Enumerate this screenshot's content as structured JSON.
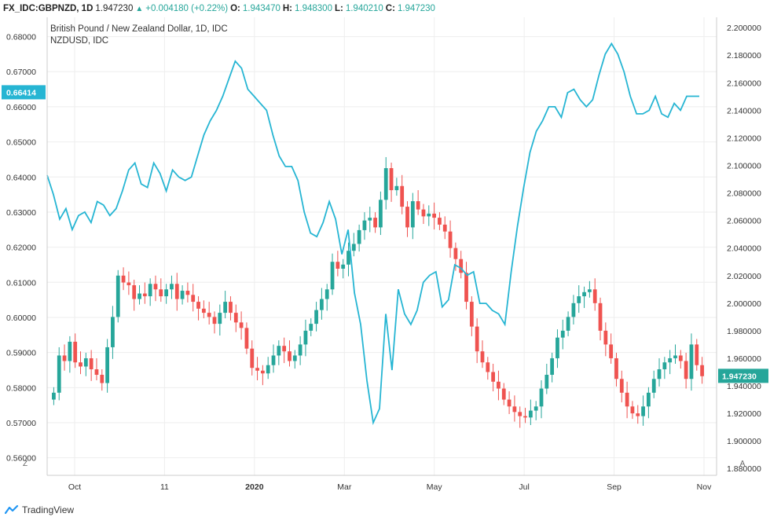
{
  "header": {
    "symbol": "FX_IDC:GBPNZD, 1D",
    "last": "1.947230",
    "arrow": "▲",
    "change": "+0.004180 (+0.22%)",
    "o_label": "O:",
    "o_value": "1.943470",
    "h_label": "H:",
    "h_value": "1.948300",
    "l_label": "L:",
    "l_value": "1.940210",
    "c_label": "C:",
    "c_value": "1.947230"
  },
  "legend": {
    "line1": "British Pound / New Zealand Dollar, 1D, IDC",
    "line2": "NZDUSD, IDC"
  },
  "corner": {
    "left": "Z",
    "right": "A"
  },
  "footer": {
    "brand": "TradingView"
  },
  "colors": {
    "up": "#26a69a",
    "down": "#ef5350",
    "nzd_line": "#26b5d3",
    "grid": "#eeeeee"
  },
  "chart_data": {
    "type": "line",
    "x_ticks": [
      "Oct",
      "11",
      "2020",
      "Mar",
      "May",
      "Jul",
      "Sep",
      "Nov"
    ],
    "left_axis": {
      "ticks": [
        "0.68000",
        "0.67000",
        "0.66000",
        "0.65000",
        "0.64000",
        "0.63000",
        "0.62000",
        "0.61000",
        "0.60000",
        "0.59000",
        "0.58000",
        "0.57000",
        "0.56000"
      ],
      "range": [
        0.555,
        0.6855
      ],
      "current_label": "0.66414"
    },
    "right_axis": {
      "ticks": [
        "2.200000",
        "2.180000",
        "2.160000",
        "2.140000",
        "2.120000",
        "2.100000",
        "2.080000",
        "2.060000",
        "2.040000",
        "2.020000",
        "2.000000",
        "1.980000",
        "1.960000",
        "1.940000",
        "1.920000",
        "1.900000",
        "1.880000"
      ],
      "range": [
        1.875,
        2.2075
      ],
      "current_label": "1.947230"
    },
    "series": [
      {
        "name": "NZDUSD, IDC",
        "axis": "left",
        "values": [
          0.6405,
          0.635,
          0.628,
          0.631,
          0.625,
          0.629,
          0.63,
          0.627,
          0.633,
          0.632,
          0.629,
          0.631,
          0.636,
          0.642,
          0.644,
          0.638,
          0.637,
          0.644,
          0.641,
          0.636,
          0.642,
          0.64,
          0.639,
          0.64,
          0.646,
          0.652,
          0.656,
          0.659,
          0.663,
          0.668,
          0.673,
          0.671,
          0.665,
          0.663,
          0.661,
          0.659,
          0.652,
          0.646,
          0.643,
          0.643,
          0.639,
          0.63,
          0.624,
          0.623,
          0.627,
          0.633,
          0.628,
          0.618,
          0.625,
          0.607,
          0.598,
          0.582,
          0.57,
          0.574,
          0.601,
          0.585,
          0.608,
          0.601,
          0.598,
          0.602,
          0.61,
          0.612,
          0.613,
          0.603,
          0.605,
          0.615,
          0.614,
          0.612,
          0.613,
          0.604,
          0.604,
          0.602,
          0.601,
          0.598,
          0.613,
          0.626,
          0.637,
          0.647,
          0.653,
          0.656,
          0.66,
          0.66,
          0.657,
          0.664,
          0.665,
          0.662,
          0.66,
          0.662,
          0.669,
          0.675,
          0.678,
          0.675,
          0.67,
          0.663,
          0.658,
          0.658,
          0.659,
          0.663,
          0.658,
          0.657,
          0.661,
          0.659,
          0.663,
          0.663,
          0.663
        ]
      },
      {
        "name": "British Pound / New Zealand Dollar, 1D, IDC",
        "axis": "right",
        "type": "candlestick",
        "closes": [
          1.935,
          1.962,
          1.958,
          1.972,
          1.957,
          1.954,
          1.96,
          1.952,
          1.948,
          1.942,
          1.968,
          1.99,
          2.02,
          2.015,
          2.013,
          2.003,
          2.007,
          2.005,
          2.014,
          2.01,
          2.005,
          2.01,
          2.014,
          2.003,
          2.009,
          2.006,
          2.001,
          1.996,
          1.993,
          1.99,
          1.985,
          1.993,
          2.001,
          1.993,
          1.986,
          1.982,
          1.967,
          1.953,
          1.951,
          1.949,
          1.955,
          1.962,
          1.969,
          1.965,
          1.958,
          1.962,
          1.97,
          1.98,
          1.985,
          1.995,
          2.003,
          2.01,
          2.03,
          2.025,
          2.028,
          2.038,
          2.043,
          2.053,
          2.06,
          2.062,
          2.055,
          2.075,
          2.098,
          2.082,
          2.085,
          2.07,
          2.055,
          2.074,
          2.068,
          2.063,
          2.065,
          2.062,
          2.057,
          2.052,
          2.04,
          2.032,
          2.022,
          2.001,
          1.983,
          1.965,
          1.957,
          1.95,
          1.943,
          1.938,
          1.93,
          1.925,
          1.921,
          1.918,
          1.917,
          1.922,
          1.925,
          1.938,
          1.948,
          1.96,
          1.975,
          1.98,
          1.99,
          2.0,
          2.005,
          2.008,
          2.01,
          2.0,
          1.98,
          1.97,
          1.96,
          1.945,
          1.935,
          1.925,
          1.92,
          1.918,
          1.925,
          1.935,
          1.945,
          1.952,
          1.957,
          1.96,
          1.962,
          1.958,
          1.945,
          1.97,
          1.955,
          1.947
        ]
      }
    ]
  }
}
